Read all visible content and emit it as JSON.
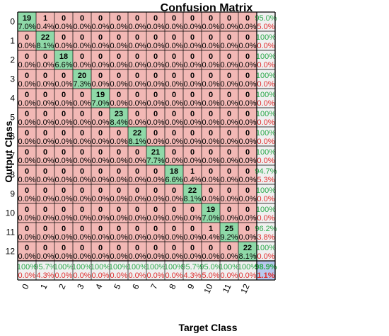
{
  "chart_data": {
    "type": "heatmap",
    "title": "Confusion Matrix",
    "xlabel": "Target Class",
    "ylabel": "Output Class",
    "x_tick_labels": [
      "0",
      "1",
      "2",
      "3",
      "4",
      "5",
      "6",
      "7",
      "8",
      "9",
      "10",
      "11",
      "12"
    ],
    "y_tick_labels": [
      "0",
      "1",
      "2",
      "3",
      "4",
      "5",
      "6",
      "7",
      "8",
      "9",
      "10",
      "11",
      "12"
    ],
    "counts": [
      [
        19,
        1,
        0,
        0,
        0,
        0,
        0,
        0,
        0,
        0,
        0,
        0,
        0
      ],
      [
        0,
        22,
        0,
        0,
        0,
        0,
        0,
        0,
        0,
        0,
        0,
        0,
        0
      ],
      [
        0,
        0,
        18,
        0,
        0,
        0,
        0,
        0,
        0,
        0,
        0,
        0,
        0
      ],
      [
        0,
        0,
        0,
        20,
        0,
        0,
        0,
        0,
        0,
        0,
        0,
        0,
        0
      ],
      [
        0,
        0,
        0,
        0,
        19,
        0,
        0,
        0,
        0,
        0,
        0,
        0,
        0
      ],
      [
        0,
        0,
        0,
        0,
        0,
        23,
        0,
        0,
        0,
        0,
        0,
        0,
        0
      ],
      [
        0,
        0,
        0,
        0,
        0,
        0,
        22,
        0,
        0,
        0,
        0,
        0,
        0
      ],
      [
        0,
        0,
        0,
        0,
        0,
        0,
        0,
        21,
        0,
        0,
        0,
        0,
        0
      ],
      [
        0,
        0,
        0,
        0,
        0,
        0,
        0,
        0,
        18,
        1,
        0,
        0,
        0
      ],
      [
        0,
        0,
        0,
        0,
        0,
        0,
        0,
        0,
        0,
        22,
        0,
        0,
        0
      ],
      [
        0,
        0,
        0,
        0,
        0,
        0,
        0,
        0,
        0,
        0,
        19,
        0,
        0
      ],
      [
        0,
        0,
        0,
        0,
        0,
        0,
        0,
        0,
        0,
        0,
        1,
        25,
        0
      ],
      [
        0,
        0,
        0,
        0,
        0,
        0,
        0,
        0,
        0,
        0,
        0,
        0,
        22
      ]
    ],
    "percents": [
      [
        "7.0%",
        "0.4%",
        "0.0%",
        "0.0%",
        "0.0%",
        "0.0%",
        "0.0%",
        "0.0%",
        "0.0%",
        "0.0%",
        "0.0%",
        "0.0%",
        "0.0%"
      ],
      [
        "0.0%",
        "8.1%",
        "0.0%",
        "0.0%",
        "0.0%",
        "0.0%",
        "0.0%",
        "0.0%",
        "0.0%",
        "0.0%",
        "0.0%",
        "0.0%",
        "0.0%"
      ],
      [
        "0.0%",
        "0.0%",
        "6.6%",
        "0.0%",
        "0.0%",
        "0.0%",
        "0.0%",
        "0.0%",
        "0.0%",
        "0.0%",
        "0.0%",
        "0.0%",
        "0.0%"
      ],
      [
        "0.0%",
        "0.0%",
        "0.0%",
        "7.3%",
        "0.0%",
        "0.0%",
        "0.0%",
        "0.0%",
        "0.0%",
        "0.0%",
        "0.0%",
        "0.0%",
        "0.0%"
      ],
      [
        "0.0%",
        "0.0%",
        "0.0%",
        "0.0%",
        "7.0%",
        "0.0%",
        "0.0%",
        "0.0%",
        "0.0%",
        "0.0%",
        "0.0%",
        "0.0%",
        "0.0%"
      ],
      [
        "0.0%",
        "0.0%",
        "0.0%",
        "0.0%",
        "0.0%",
        "8.4%",
        "0.0%",
        "0.0%",
        "0.0%",
        "0.0%",
        "0.0%",
        "0.0%",
        "0.0%"
      ],
      [
        "0.0%",
        "0.0%",
        "0.0%",
        "0.0%",
        "0.0%",
        "0.0%",
        "8.1%",
        "0.0%",
        "0.0%",
        "0.0%",
        "0.0%",
        "0.0%",
        "0.0%"
      ],
      [
        "0.0%",
        "0.0%",
        "0.0%",
        "0.0%",
        "0.0%",
        "0.0%",
        "0.0%",
        "7.7%",
        "0.0%",
        "0.0%",
        "0.0%",
        "0.0%",
        "0.0%"
      ],
      [
        "0.0%",
        "0.0%",
        "0.0%",
        "0.0%",
        "0.0%",
        "0.0%",
        "0.0%",
        "0.0%",
        "6.6%",
        "0.4%",
        "0.0%",
        "0.0%",
        "0.0%"
      ],
      [
        "0.0%",
        "0.0%",
        "0.0%",
        "0.0%",
        "0.0%",
        "0.0%",
        "0.0%",
        "0.0%",
        "0.0%",
        "8.1%",
        "0.0%",
        "0.0%",
        "0.0%"
      ],
      [
        "0.0%",
        "0.0%",
        "0.0%",
        "0.0%",
        "0.0%",
        "0.0%",
        "0.0%",
        "0.0%",
        "0.0%",
        "0.0%",
        "7.0%",
        "0.0%",
        "0.0%"
      ],
      [
        "0.0%",
        "0.0%",
        "0.0%",
        "0.0%",
        "0.0%",
        "0.0%",
        "0.0%",
        "0.0%",
        "0.0%",
        "0.0%",
        "0.4%",
        "9.2%",
        "0.0%"
      ],
      [
        "0.0%",
        "0.0%",
        "0.0%",
        "0.0%",
        "0.0%",
        "0.0%",
        "0.0%",
        "0.0%",
        "0.0%",
        "0.0%",
        "0.0%",
        "0.0%",
        "8.1%"
      ]
    ],
    "row_summary": [
      [
        "95.0%",
        "5.0%"
      ],
      [
        "100%",
        "0.0%"
      ],
      [
        "100%",
        "0.0%"
      ],
      [
        "100%",
        "0.0%"
      ],
      [
        "100%",
        "0.0%"
      ],
      [
        "100%",
        "0.0%"
      ],
      [
        "100%",
        "0.0%"
      ],
      [
        "100%",
        "0.0%"
      ],
      [
        "94.7%",
        "5.3%"
      ],
      [
        "100%",
        "0.0%"
      ],
      [
        "100%",
        "0.0%"
      ],
      [
        "96.2%",
        "3.8%"
      ],
      [
        "100%",
        "0.0%"
      ]
    ],
    "col_summary": [
      [
        "100%",
        "0.0%"
      ],
      [
        "95.7%",
        "4.3%"
      ],
      [
        "100%",
        "0.0%"
      ],
      [
        "100%",
        "0.0%"
      ],
      [
        "100%",
        "0.0%"
      ],
      [
        "100%",
        "0.0%"
      ],
      [
        "100%",
        "0.0%"
      ],
      [
        "100%",
        "0.0%"
      ],
      [
        "100%",
        "0.0%"
      ],
      [
        "95.7%",
        "4.3%"
      ],
      [
        "95.0%",
        "5.0%"
      ],
      [
        "100%",
        "0.0%"
      ],
      [
        "100%",
        "0.0%"
      ]
    ],
    "overall": [
      "98.9%",
      "1.1%"
    ]
  },
  "colors": {
    "diagonal": "#8fd9a8",
    "off_diagonal": "#f2b8b5",
    "summary": "#f0f0f0",
    "overall": "#b8c8ee",
    "correct_text": "#2aa84a",
    "error_text": "#e03030"
  }
}
